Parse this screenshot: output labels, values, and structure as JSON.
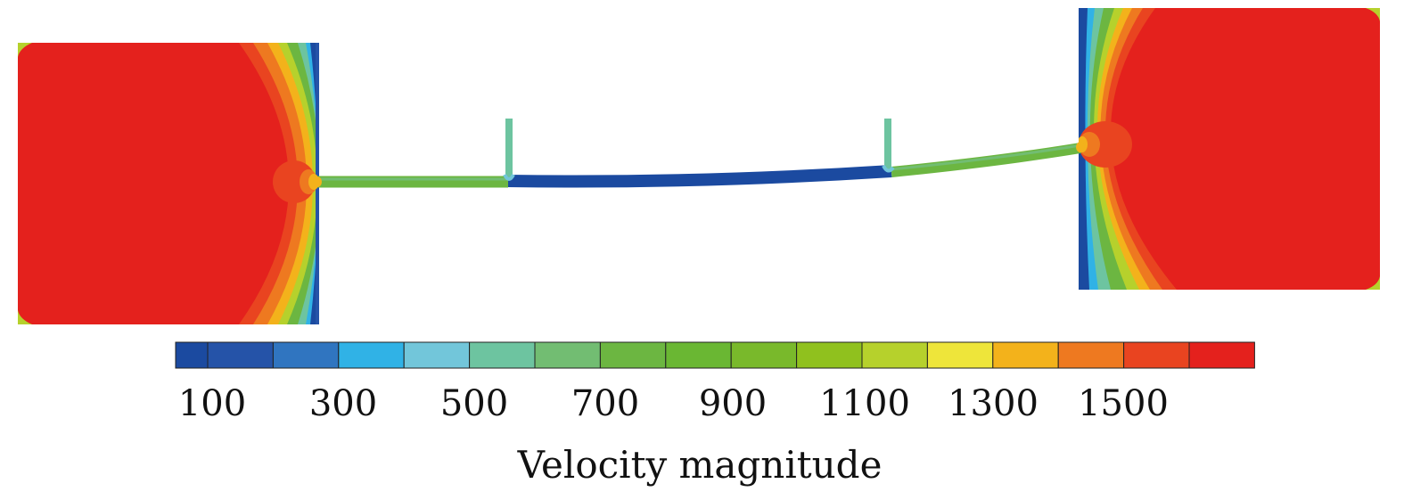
{
  "colorbar": {
    "title": "Velocity magnitude",
    "tick_labels": [
      "100",
      "300",
      "500",
      "700",
      "900",
      "1100",
      "1300",
      "1500"
    ],
    "colors": [
      "#1b4aa0",
      "#2553a8",
      "#3075c0",
      "#30b2e6",
      "#72c6da",
      "#6dc4a0",
      "#72bd72",
      "#6cb641",
      "#6ab733",
      "#79b92b",
      "#90c11e",
      "#b6d12c",
      "#eee53a",
      "#f3b21b",
      "#ee7920",
      "#e94420",
      "#e4211d"
    ]
  },
  "field_colors": {
    "high": "#e4211d",
    "low": "#1b4aa0",
    "mid": "#6cb641"
  }
}
